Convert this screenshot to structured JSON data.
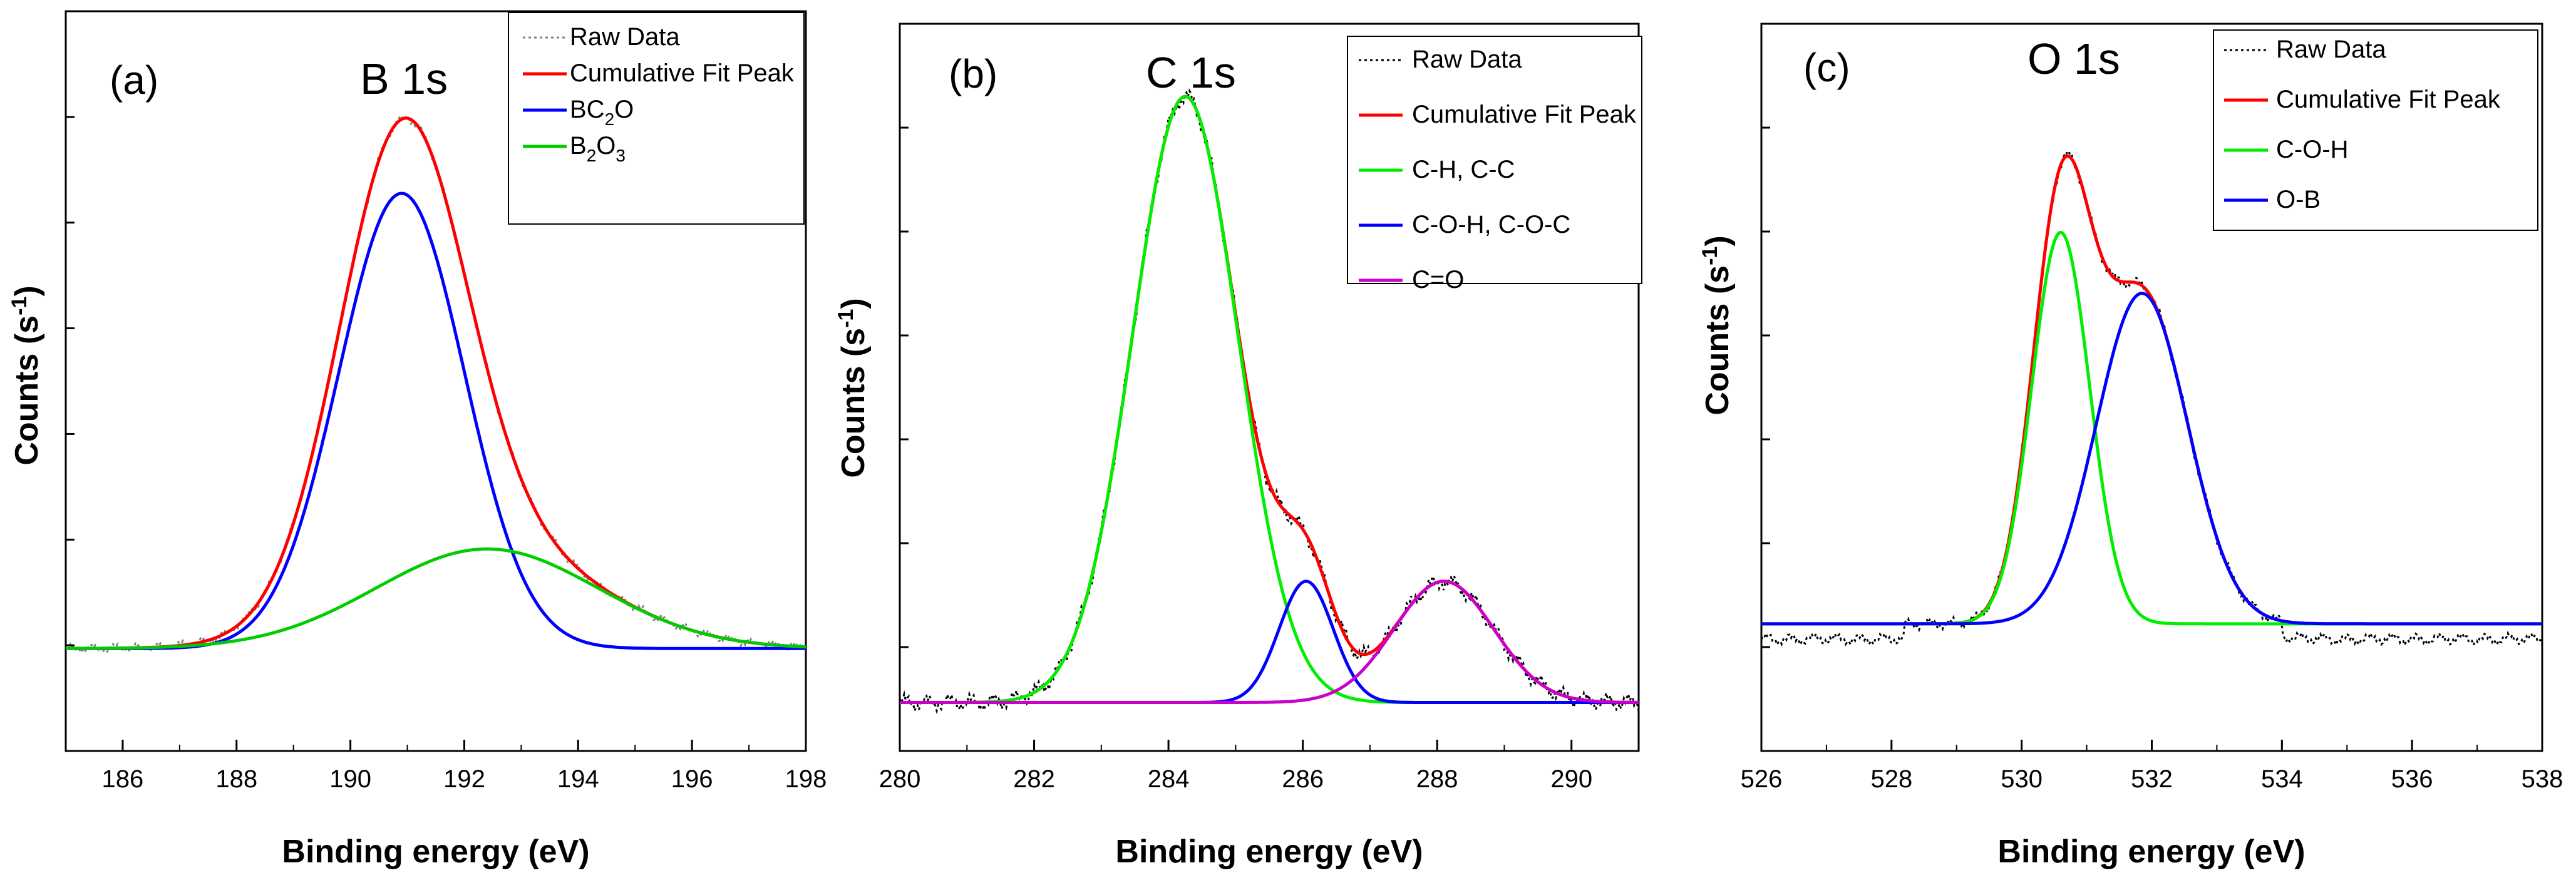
{
  "figure": {
    "panels": [
      {
        "label": "(a)",
        "title": "B 1s",
        "xlabel": "Binding energy (eV)",
        "ylabel": "Counts (s",
        "ylabel_sup": "-1",
        "ylabel_close": ")"
      },
      {
        "label": "(b)",
        "title": "C 1s",
        "xlabel": "Binding energy (eV)",
        "ylabel": "Counts (s",
        "ylabel_sup": "-1",
        "ylabel_close": ")"
      },
      {
        "label": "(c)",
        "title": "O 1s",
        "xlabel": "Binding energy (eV)",
        "ylabel": "Counts (s",
        "ylabel_sup": "-1",
        "ylabel_close": ")"
      }
    ]
  },
  "chart_data": [
    {
      "type": "line",
      "title": "B 1s",
      "panel_label": "(a)",
      "xlabel": "Binding energy (eV)",
      "ylabel": "Counts (s-1)",
      "xlim": [
        185,
        198
      ],
      "ylim": [
        -0.18,
        1.12
      ],
      "xticks": [
        186,
        188,
        190,
        192,
        194,
        196,
        198
      ],
      "legend_position": "top-right",
      "series": [
        {
          "name": "Raw Data",
          "style": "dotted",
          "color": "#808080",
          "kind": "sum",
          "noise": 0.008
        },
        {
          "name": "Cumulative Fit Peak",
          "style": "solid",
          "color": "#ff0000",
          "kind": "sum"
        },
        {
          "name": "BC",
          "sub": "2",
          "suffix": "O",
          "style": "solid",
          "color": "#0000ff",
          "kind": "peak",
          "center": 190.9,
          "height": 0.8,
          "fwhm": 2.6
        },
        {
          "name": "B",
          "sub": "2",
          "suffix": "O",
          "sub2": "3",
          "style": "solid",
          "color": "#00cc00",
          "kind": "peak",
          "center": 192.4,
          "height": 0.175,
          "fwhm": 4.6
        }
      ],
      "baseline": 0.0
    },
    {
      "type": "line",
      "title": "C 1s",
      "panel_label": "(b)",
      "xlabel": "Binding energy (eV)",
      "ylabel": "Counts (s-1)",
      "xlim": [
        280,
        291
      ],
      "ylim": [
        -0.08,
        1.12
      ],
      "xticks": [
        280,
        282,
        284,
        286,
        288,
        290
      ],
      "legend_position": "top-right",
      "series": [
        {
          "name": "Raw Data",
          "style": "dotted",
          "color": "#000000",
          "kind": "sum",
          "noise": 0.015
        },
        {
          "name": "Cumulative Fit Peak",
          "style": "solid",
          "color": "#ff0000",
          "kind": "sum"
        },
        {
          "name": "C-H, C-C",
          "style": "solid",
          "color": "#00ee00",
          "kind": "peak",
          "center": 284.25,
          "height": 1.0,
          "fwhm": 1.85
        },
        {
          "name": "C-O-H, C-O-C",
          "style": "solid",
          "color": "#0000ff",
          "kind": "peak",
          "center": 286.05,
          "height": 0.2,
          "fwhm": 0.95
        },
        {
          "name": "C=O",
          "style": "solid",
          "color": "#cc00cc",
          "kind": "peak",
          "center": 288.1,
          "height": 0.2,
          "fwhm": 1.75
        }
      ],
      "baseline": 0.0
    },
    {
      "type": "line",
      "title": "O 1s",
      "panel_label": "(c)",
      "xlabel": "Binding energy (eV)",
      "ylabel": "Counts (s-1)",
      "xlim": [
        526,
        538
      ],
      "ylim": [
        -0.25,
        1.18
      ],
      "xticks": [
        526,
        528,
        530,
        532,
        534,
        536,
        538
      ],
      "legend_position": "top-right",
      "series": [
        {
          "name": "Raw Data",
          "style": "dotted",
          "color": "#000000",
          "kind": "sum",
          "noise": 0.012,
          "offset": -0.03
        },
        {
          "name": "Cumulative Fit Peak",
          "style": "solid",
          "color": "#ff0000",
          "kind": "sum"
        },
        {
          "name": "C-O-H",
          "style": "solid",
          "color": "#00ee00",
          "kind": "peak",
          "center": 530.6,
          "height": 0.77,
          "fwhm": 1.05
        },
        {
          "name": "O-B",
          "style": "solid",
          "color": "#0000ff",
          "kind": "peak",
          "center": 531.85,
          "height": 0.65,
          "fwhm": 1.65
        }
      ],
      "baseline": 0.0
    }
  ]
}
